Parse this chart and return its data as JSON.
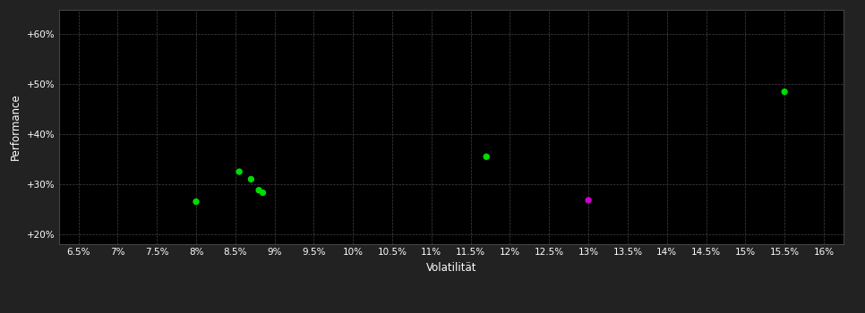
{
  "background_color": "#222222",
  "plot_bg_color": "#000000",
  "grid_color": "#444444",
  "text_color": "#ffffff",
  "xlabel": "Volatilität",
  "ylabel": "Performance",
  "x_ticks": [
    6.5,
    7.0,
    7.5,
    8.0,
    8.5,
    9.0,
    9.5,
    10.0,
    10.5,
    11.0,
    11.5,
    12.0,
    12.5,
    13.0,
    13.5,
    14.0,
    14.5,
    15.0,
    15.5,
    16.0
  ],
  "y_ticks": [
    20,
    30,
    40,
    50,
    60
  ],
  "xlim": [
    6.25,
    16.25
  ],
  "ylim": [
    18,
    65
  ],
  "points_green": [
    [
      8.0,
      26.5
    ],
    [
      8.55,
      32.5
    ],
    [
      8.7,
      31.0
    ],
    [
      8.8,
      28.8
    ],
    [
      8.85,
      28.3
    ],
    [
      11.7,
      35.5
    ],
    [
      15.5,
      48.5
    ]
  ],
  "points_magenta": [
    [
      13.0,
      26.8
    ]
  ],
  "marker_size": 28,
  "green_color": "#00dd00",
  "magenta_color": "#cc00cc"
}
